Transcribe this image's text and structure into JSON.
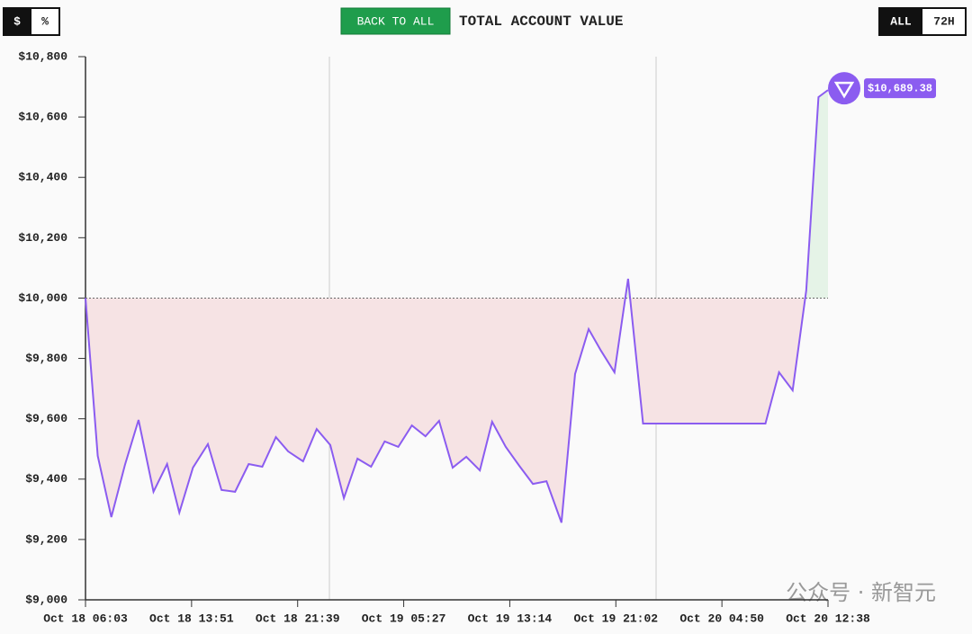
{
  "controls": {
    "currency": "$",
    "percent": "%",
    "back": "BACK TO ALL",
    "all": "ALL",
    "range": "72H"
  },
  "watermark": "公众号 · 新智元",
  "chart_data": {
    "type": "line",
    "title": "TOTAL ACCOUNT VALUE",
    "x": [
      0,
      0.9,
      1.9,
      2.9,
      3.9,
      5.0,
      6.0,
      6.9,
      7.9,
      9.0,
      10.0,
      11.0,
      12.0,
      13.0,
      14.0,
      14.9,
      16.0,
      17.0,
      18.0,
      19.0,
      20.0,
      21.0,
      22.0,
      23.0,
      24.0,
      25.0,
      26.0,
      27.0,
      28.0,
      29.0,
      29.9,
      30.9,
      31.9,
      32.9,
      33.9,
      35.0,
      36.0,
      37.0,
      37.9,
      38.9,
      39.9,
      41.0,
      50.0,
      51.0,
      52.0,
      53.0,
      53.9,
      54.6
    ],
    "series": [
      {
        "name": "Account value",
        "color": "#8b5cf0",
        "values": [
          10000,
          9477,
          9274,
          9447,
          9596,
          9358,
          9450,
          9289,
          9438,
          9516,
          9364,
          9358,
          9450,
          9441,
          9539,
          9492,
          9459,
          9566,
          9513,
          9337,
          9468,
          9441,
          9525,
          9507,
          9578,
          9542,
          9593,
          9438,
          9474,
          9429,
          9590,
          9507,
          9444,
          9384,
          9393,
          9256,
          9748,
          9897,
          9826,
          9754,
          10064,
          9584,
          9584,
          9754,
          9694,
          10025,
          10666,
          10689.38
        ],
        "value_labels": [
          null,
          null,
          null,
          null,
          null,
          null,
          null,
          null,
          null,
          null,
          null,
          null,
          null,
          null,
          null,
          null,
          null,
          null,
          null,
          null,
          null,
          null,
          null,
          null,
          null,
          null,
          null,
          null,
          null,
          null,
          null,
          null,
          null,
          null,
          null,
          null,
          null,
          null,
          null,
          null,
          null,
          null,
          null,
          null,
          null,
          null,
          null,
          "$10,689.38"
        ]
      }
    ],
    "baseline": 10000,
    "xlim": [
      0,
      54.6
    ],
    "xticks": [
      {
        "value": 0,
        "label": "Oct 18 06:03"
      },
      {
        "value": 7.8,
        "label": "Oct 18 13:51"
      },
      {
        "value": 15.6,
        "label": "Oct 18 21:39"
      },
      {
        "value": 23.4,
        "label": "Oct 19 05:27"
      },
      {
        "value": 31.2,
        "label": "Oct 19 13:14"
      },
      {
        "value": 39.0,
        "label": "Oct 19 21:02"
      },
      {
        "value": 46.8,
        "label": "Oct 20 04:50"
      },
      {
        "value": 54.6,
        "label": "Oct 20 12:38"
      }
    ],
    "ylim": [
      9000,
      10800
    ],
    "yticks": [
      {
        "value": 9000,
        "label": "$9,000"
      },
      {
        "value": 9200,
        "label": "$9,200"
      },
      {
        "value": 9400,
        "label": "$9,400"
      },
      {
        "value": 9600,
        "label": "$9,600"
      },
      {
        "value": 9800,
        "label": "$9,800"
      },
      {
        "value": 10000,
        "label": "$10,000"
      },
      {
        "value": 10200,
        "label": "$10,200"
      },
      {
        "value": 10400,
        "label": "$10,400"
      },
      {
        "value": 10600,
        "label": "$10,600"
      },
      {
        "value": 10800,
        "label": "$10,800"
      }
    ],
    "above_color": "#e5f3e7",
    "below_color": "#f6e3e4"
  }
}
